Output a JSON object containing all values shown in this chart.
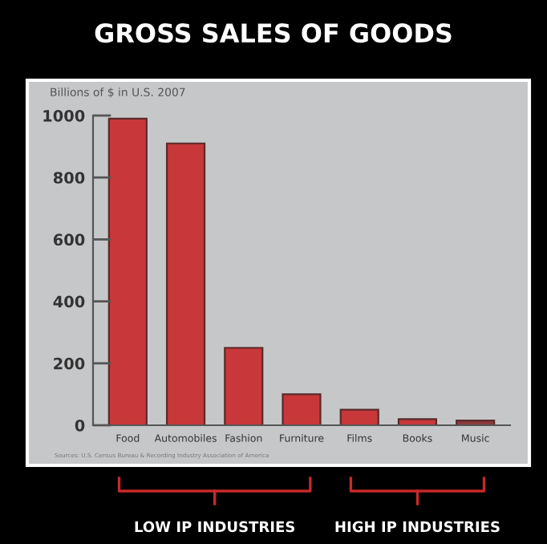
{
  "chart_data": {
    "type": "bar",
    "title": "GROSS SALES OF GOODS",
    "ylabel": "Billions of $ in U.S. 2007",
    "categories": [
      "Food",
      "Automobiles",
      "Fashion",
      "Furniture",
      "Films",
      "Books",
      "Music"
    ],
    "values": [
      990,
      910,
      250,
      100,
      50,
      20,
      15
    ],
    "colors": [
      "#c8383a",
      "#c8383a",
      "#c8383a",
      "#c8383a",
      "#c8383a",
      "#c8383a",
      "#8c3a3a"
    ],
    "ylim": [
      0,
      1000
    ],
    "yticks": [
      0,
      200,
      400,
      600,
      800,
      1000
    ],
    "grid": false,
    "legend": false,
    "annotations": [
      "Sources: U.S. Census Bureau & Recording Industry Association of America",
      "LOW IP INDUSTRIES",
      "HIGH IP INDUSTRIES"
    ]
  }
}
